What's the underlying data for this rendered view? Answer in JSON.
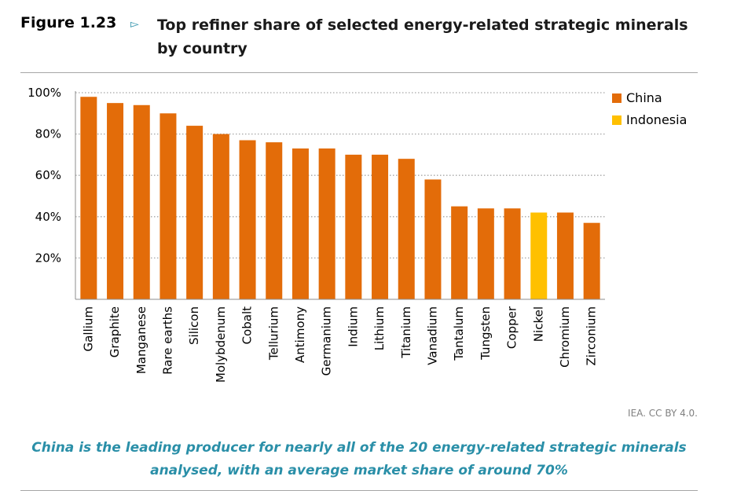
{
  "figure": {
    "label": "Figure 1.23",
    "title": "Top refiner share of selected energy-related strategic minerals by country",
    "source": "IEA. CC BY 4.0.",
    "caption": "China is the leading producer for nearly all of the 20 energy-related strategic minerals analysed, with an average market share of around 70%"
  },
  "icons": {
    "arrow": "triangle-right-icon"
  },
  "colors": {
    "China": "#e36c09",
    "Indonesia": "#ffc000",
    "accent": "#2a8fa8"
  },
  "legend": [
    {
      "label": "China",
      "color": "#e36c09"
    },
    {
      "label": "Indonesia",
      "color": "#ffc000"
    }
  ],
  "chart_data": {
    "type": "bar",
    "categories": [
      "Gallium",
      "Graphite",
      "Manganese",
      "Rare earths",
      "Silicon",
      "Molybdenum",
      "Cobalt",
      "Tellurium",
      "Antimony",
      "Germanium",
      "Indium",
      "Lithium",
      "Titanium",
      "Vanadium",
      "Tantalum",
      "Tungsten",
      "Copper",
      "Nickel",
      "Chromium",
      "Zirconium"
    ],
    "values": [
      98,
      95,
      94,
      90,
      84,
      80,
      77,
      76,
      73,
      73,
      70,
      70,
      68,
      58,
      45,
      44,
      44,
      42,
      42,
      37
    ],
    "country": [
      "China",
      "China",
      "China",
      "China",
      "China",
      "China",
      "China",
      "China",
      "China",
      "China",
      "China",
      "China",
      "China",
      "China",
      "China",
      "China",
      "China",
      "Indonesia",
      "China",
      "China"
    ],
    "ylim": [
      0,
      100
    ],
    "yticks": [
      20,
      40,
      60,
      80,
      100
    ],
    "ytick_labels": [
      "20%",
      "40%",
      "60%",
      "80%",
      "100%"
    ],
    "grid": true,
    "legend_position": "top-right"
  }
}
